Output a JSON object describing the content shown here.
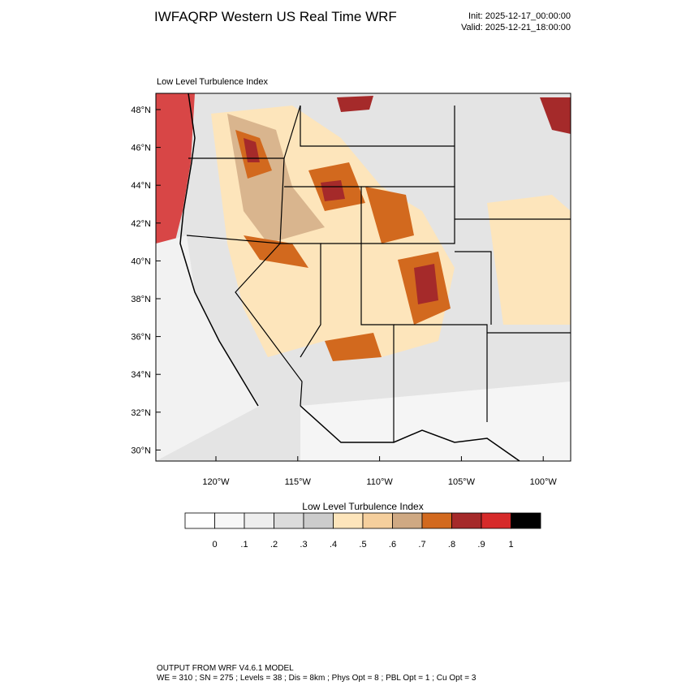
{
  "header": {
    "title": "IWFAQRP Western US Real Time WRF",
    "init": "Init: 2025-12-17_00:00:00",
    "valid": "Valid: 2025-12-21_18:00:00"
  },
  "map": {
    "field_title": "Low Level Turbulence Index",
    "lat_labels": [
      "48°N",
      "46°N",
      "44°N",
      "42°N",
      "40°N",
      "38°N",
      "36°N",
      "34°N",
      "32°N",
      "30°N"
    ],
    "lon_labels": [
      "120°W",
      "115°W",
      "110°W",
      "105°W",
      "100°W"
    ]
  },
  "colorbar": {
    "title": "Low Level Turbulence Index",
    "colors": [
      "#ffffff",
      "#f7f7f7",
      "#eeeeee",
      "#dcdcdc",
      "#cccccc",
      "#fde5bb",
      "#f5cf9d",
      "#cfa983",
      "#d2691e",
      "#a52a2a",
      "#d62a2a",
      "#000000"
    ],
    "labels": [
      "0",
      ".1",
      ".2",
      ".3",
      ".4",
      ".5",
      ".6",
      ".7",
      ".8",
      ".9",
      "1"
    ]
  },
  "footer": {
    "line1": "OUTPUT FROM WRF V4.6.1 MODEL",
    "line2": "WE = 310 ; SN = 275 ; Levels = 38 ; Dis = 8km ; Phys Opt = 8 ; PBL Opt = 1 ; Cu Opt = 3"
  }
}
